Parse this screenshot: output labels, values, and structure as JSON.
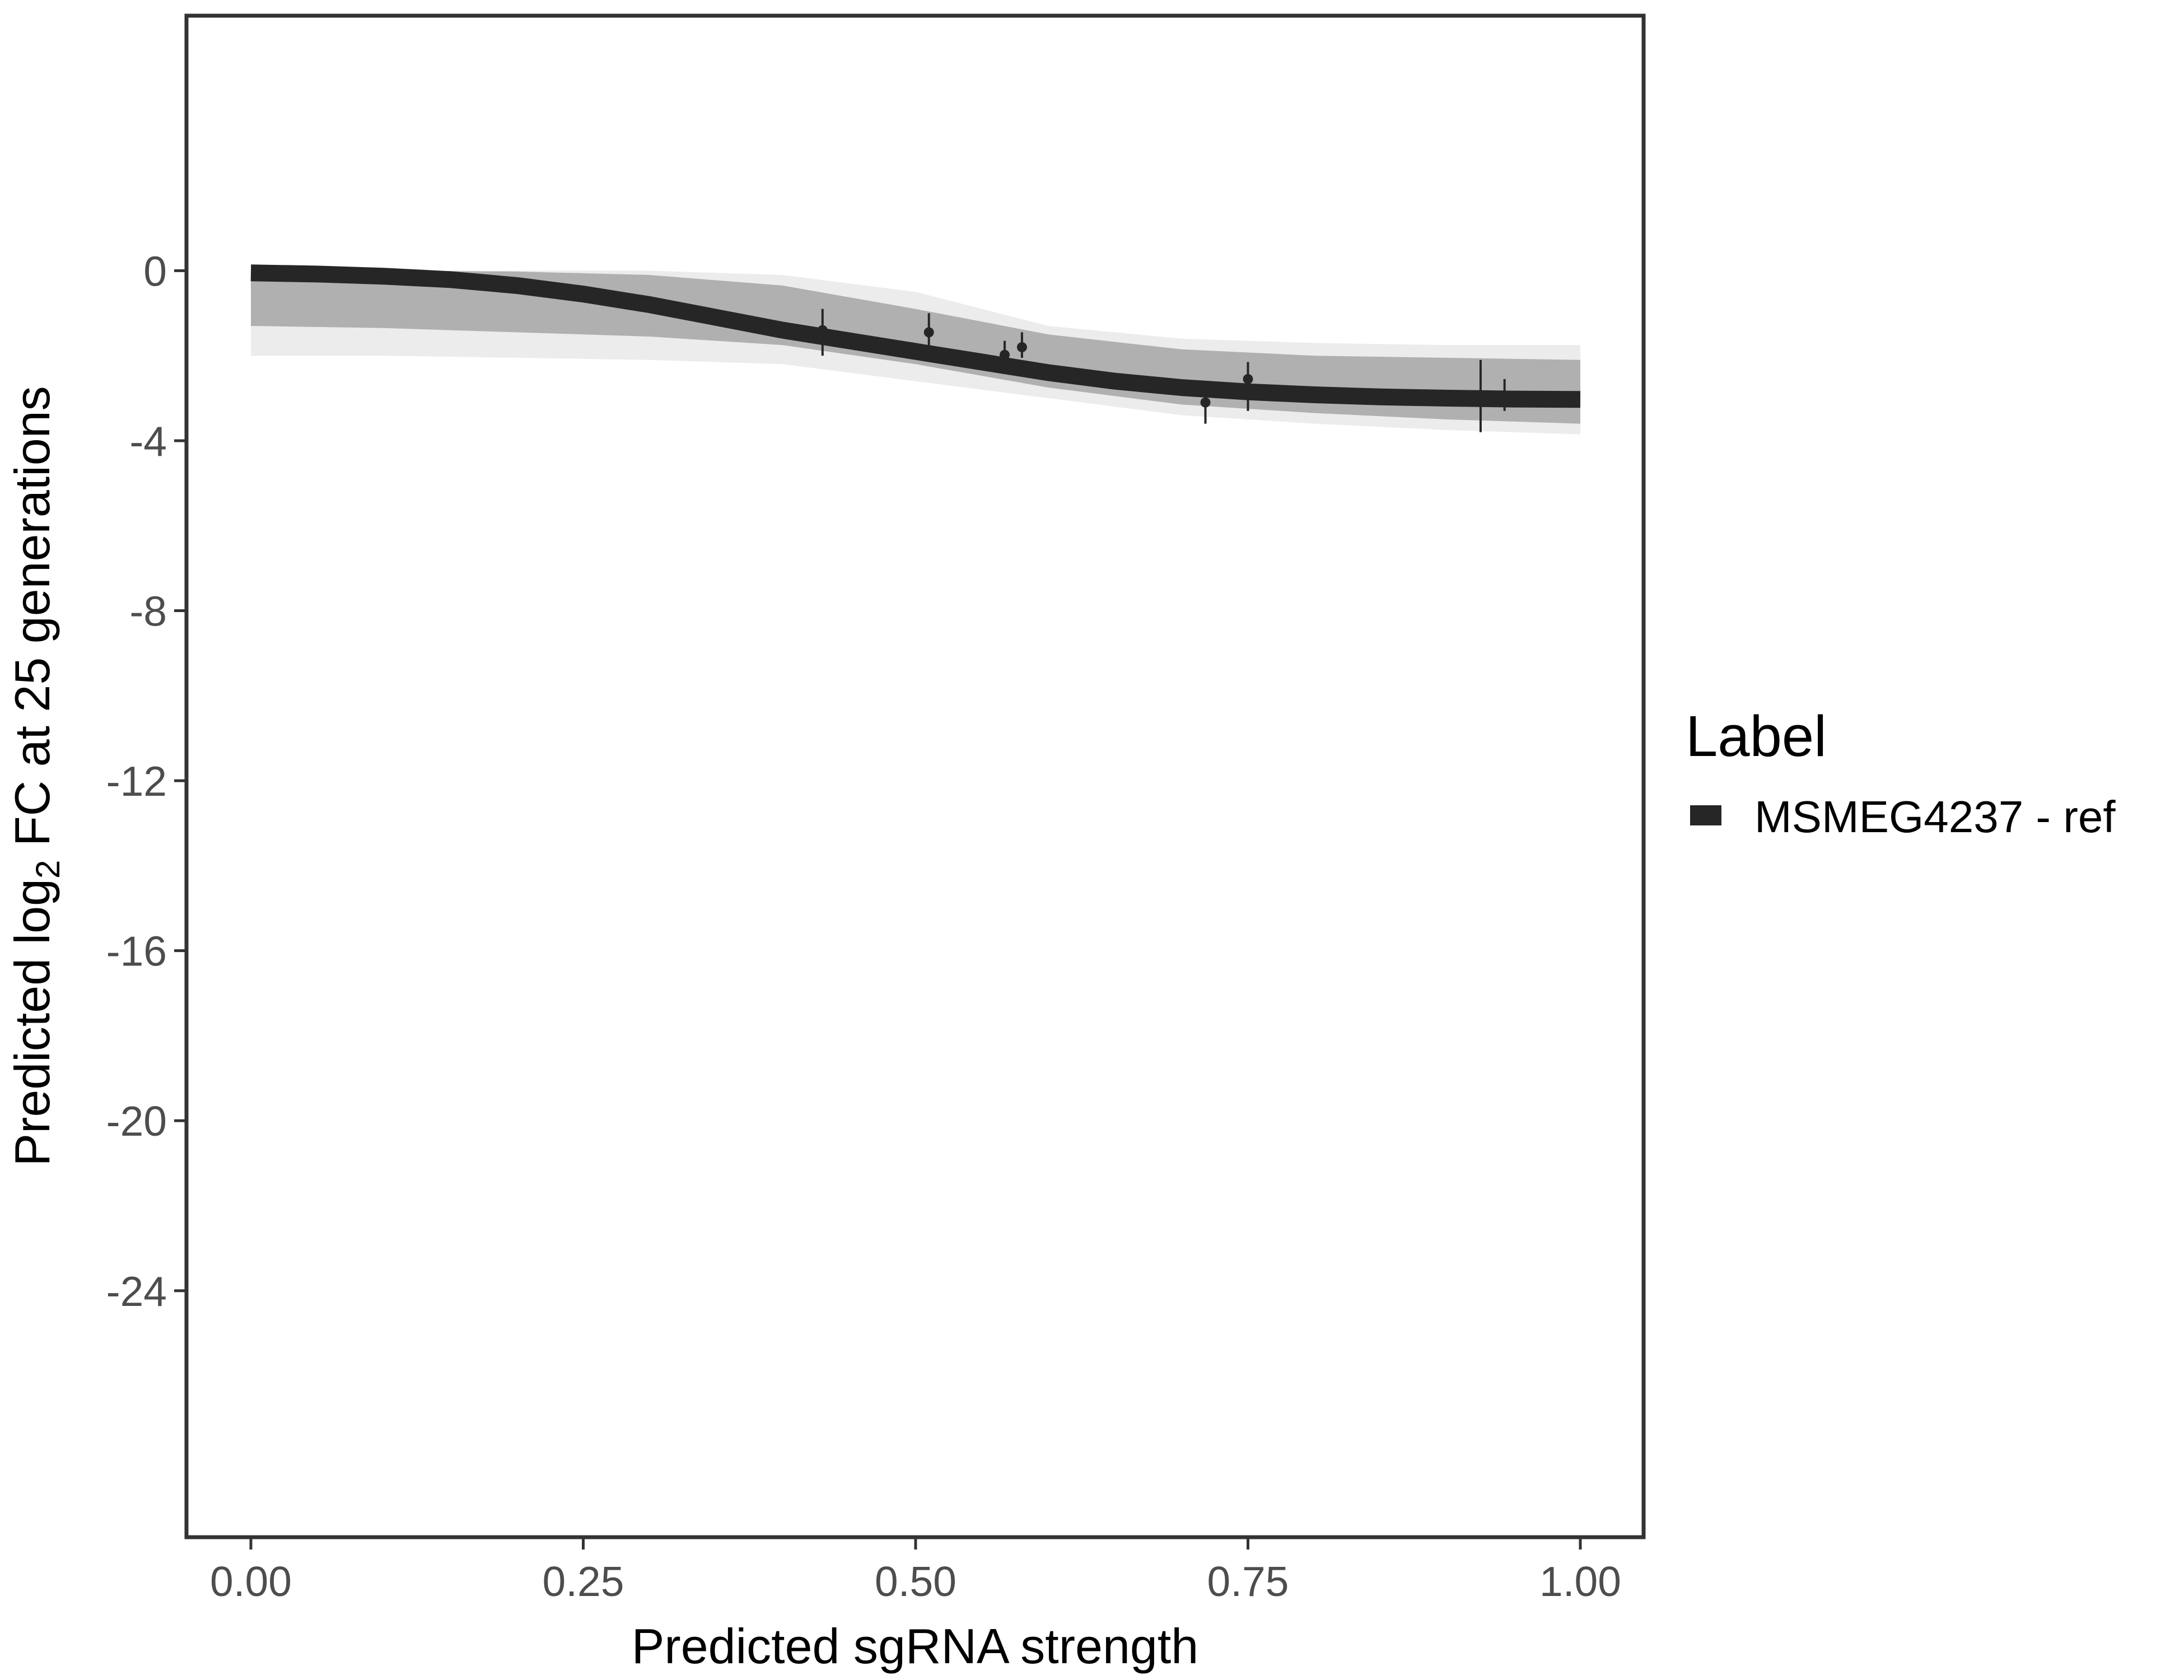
{
  "chart_data": {
    "type": "line",
    "title": "",
    "xlabel": "Predicted sgRNA strength",
    "ylabel_parts": {
      "pre": "Predicted  log",
      "sub": "2",
      "post": " FC at 25 generations"
    },
    "xlim": [
      -0.1,
      2.09
    ],
    "ylim": [
      -29.8,
      6.0
    ],
    "x_ticks": [
      0.0,
      0.25,
      0.5,
      0.75,
      1.0
    ],
    "x_tick_labels": [
      "0.00",
      "0.25",
      "0.50",
      "0.75",
      "1.00"
    ],
    "y_ticks": [
      0,
      -4,
      -8,
      -12,
      -16,
      -20,
      -24
    ],
    "y_tick_labels": [
      "0",
      "-4",
      "-8",
      "-12",
      "-16",
      "-20",
      "-24"
    ],
    "grid": false,
    "legend": {
      "title": "Label",
      "position": "right",
      "entries": [
        {
          "label": "MSMEG4237 - ref",
          "color": "#262626"
        }
      ]
    },
    "series": [
      {
        "name": "MSMEG4237 - ref",
        "kind": "fitted-curve",
        "color": "#262626",
        "x": [
          0.0,
          0.05,
          0.1,
          0.15,
          0.2,
          0.25,
          0.3,
          0.35,
          0.4,
          0.45,
          0.5,
          0.55,
          0.6,
          0.65,
          0.7,
          0.75,
          0.8,
          0.85,
          0.9,
          0.95,
          1.0
        ],
        "y": [
          -0.05,
          -0.08,
          -0.13,
          -0.21,
          -0.35,
          -0.55,
          -0.8,
          -1.1,
          -1.4,
          -1.65,
          -1.9,
          -2.15,
          -2.4,
          -2.6,
          -2.75,
          -2.85,
          -2.92,
          -2.97,
          -3.0,
          -3.02,
          -3.03
        ]
      }
    ],
    "points": [
      {
        "x": 0.43,
        "y": -1.4,
        "ylow": -0.9,
        "yhigh": -2.0
      },
      {
        "x": 0.51,
        "y": -1.45,
        "ylow": -1.0,
        "yhigh": -1.8
      },
      {
        "x": 0.567,
        "y": -1.98,
        "ylow": -1.65,
        "yhigh": -2.2
      },
      {
        "x": 0.58,
        "y": -1.8,
        "ylow": -1.45,
        "yhigh": -2.05
      },
      {
        "x": 0.718,
        "y": -3.1,
        "ylow": -2.8,
        "yhigh": -3.6
      },
      {
        "x": 0.75,
        "y": -2.55,
        "ylow": -2.15,
        "yhigh": -3.3
      },
      {
        "x": 0.925,
        "y": -3.0,
        "ylow": -2.1,
        "yhigh": -3.8
      },
      {
        "x": 0.943,
        "y": -2.95,
        "ylow": -2.55,
        "yhigh": -3.3
      }
    ],
    "uncertainty_band": {
      "color": "#a6a6a6",
      "x": [
        0.0,
        0.1,
        0.2,
        0.3,
        0.4,
        0.5,
        0.6,
        0.7,
        0.8,
        0.9,
        1.0
      ],
      "upper": [
        0.0,
        0.0,
        -0.02,
        -0.1,
        -0.35,
        -0.9,
        -1.5,
        -1.85,
        -2.0,
        -2.05,
        -2.1
      ],
      "lower": [
        -1.3,
        -1.35,
        -1.45,
        -1.55,
        -1.75,
        -2.2,
        -2.75,
        -3.15,
        -3.35,
        -3.5,
        -3.6
      ]
    },
    "faint_draws": {
      "color": "#ececec",
      "upper": [
        0.0,
        0.0,
        0.0,
        0.0,
        -0.1,
        -0.5,
        -1.3,
        -1.6,
        -1.7,
        -1.75,
        -1.75
      ],
      "lower": [
        -2.0,
        -2.0,
        -2.05,
        -2.1,
        -2.2,
        -2.6,
        -3.0,
        -3.4,
        -3.6,
        -3.75,
        -3.85
      ]
    }
  }
}
